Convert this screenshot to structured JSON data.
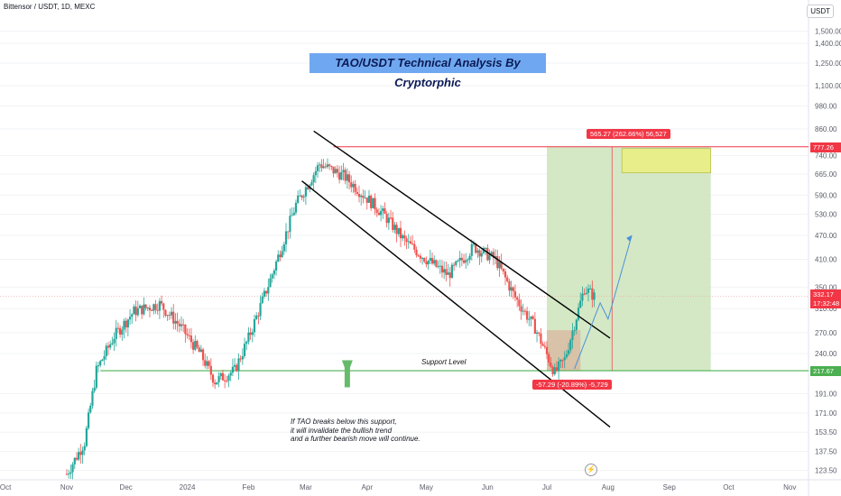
{
  "header": {
    "symbol_line": "Bittensor / USDT, 1D, MEXC",
    "currency": "USDT"
  },
  "title": "TAO/USDT Technical Analysis By Cryptorphic",
  "support_label": "Support Level",
  "note_lines": [
    "If TAO breaks below this support,",
    "it will invalidate the bullish trend",
    "and a further bearish move will continue."
  ],
  "measure_top": "565.27 (262.66%) 56,527",
  "measure_bottom": "-57.29 (-20.89%) -5,729",
  "price_tags": {
    "target": "777.26",
    "current": "332.17",
    "countdown": "17:32:48",
    "support": "217.67"
  },
  "colors": {
    "up": "#26a69a",
    "down": "#ef5350",
    "support_line": "#4caf50",
    "target_line": "#f23645",
    "title_bg": "#6fa8f0",
    "box_green": "#cfe6c0",
    "box_yellow": "#e8ee8a"
  },
  "chart_data": {
    "type": "candlestick",
    "title": "TAO/USDT Technical Analysis By Cryptorphic",
    "x_ticks": [
      "Oct",
      "Nov",
      "Dec",
      "2024",
      "Feb",
      "Mar",
      "Apr",
      "May",
      "Jun",
      "Jul",
      "Aug",
      "Sep",
      "Oct",
      "Nov"
    ],
    "y_ticks": [
      "1,500.00",
      "1,400.00",
      "1,250.00",
      "1,100.00",
      "980.00",
      "860.00",
      "740.00",
      "665.00",
      "590.00",
      "530.00",
      "470.00",
      "410.00",
      "350.00",
      "310.00",
      "270.00",
      "240.00",
      "191.00",
      "171.00",
      "153.50",
      "137.50",
      "123.50"
    ],
    "y_scale": "log",
    "ylim": [
      118,
      1600
    ],
    "levels": {
      "resistance_target": 777.26,
      "support": 217.67,
      "current": 332.17
    },
    "close_path": [
      [
        "2023-11-01",
        121
      ],
      [
        "2023-11-10",
        145
      ],
      [
        "2023-11-16",
        218
      ],
      [
        "2023-11-25",
        265
      ],
      [
        "2023-12-05",
        305
      ],
      [
        "2023-12-18",
        318
      ],
      [
        "2023-12-28",
        282
      ],
      [
        "2024-01-08",
        238
      ],
      [
        "2024-01-15",
        205
      ],
      [
        "2024-01-25",
        218
      ],
      [
        "2024-02-01",
        262
      ],
      [
        "2024-02-12",
        365
      ],
      [
        "2024-02-25",
        560
      ],
      [
        "2024-03-08",
        705
      ],
      [
        "2024-03-20",
        660
      ],
      [
        "2024-04-01",
        580
      ],
      [
        "2024-04-10",
        525
      ],
      [
        "2024-04-20",
        455
      ],
      [
        "2024-05-01",
        410
      ],
      [
        "2024-05-12",
        375
      ],
      [
        "2024-05-25",
        440
      ],
      [
        "2024-06-05",
        410
      ],
      [
        "2024-06-15",
        330
      ],
      [
        "2024-06-25",
        278
      ],
      [
        "2024-07-05",
        215
      ],
      [
        "2024-07-10",
        232
      ],
      [
        "2024-07-20",
        348
      ],
      [
        "2024-07-25",
        332
      ]
    ]
  }
}
